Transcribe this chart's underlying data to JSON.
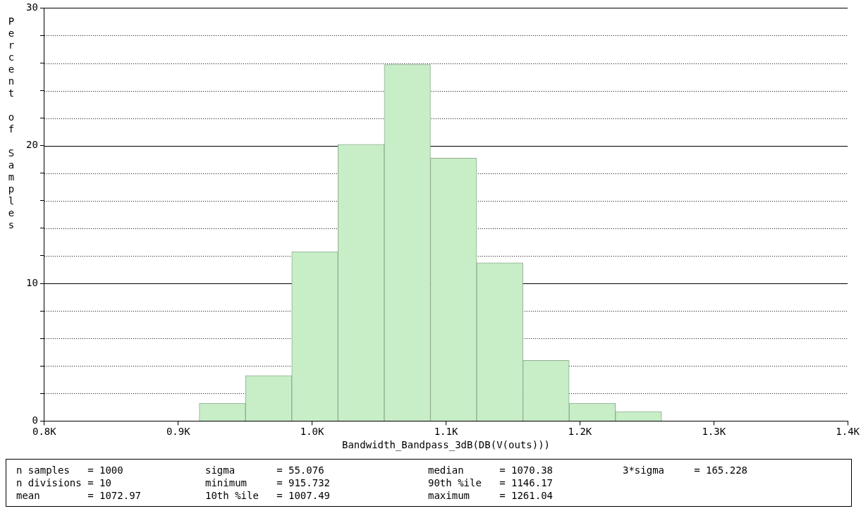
{
  "chart_data": {
    "type": "histogram",
    "xlabel": "Bandwidth_Bandpass_3dB(DB(V(outs)))",
    "ylabel": "Percent of Samples",
    "bins": [
      915.732,
      950.263,
      984.794,
      1019.325,
      1053.856,
      1088.387,
      1122.918,
      1157.449,
      1191.98,
      1226.51,
      1261.04
    ],
    "values": [
      1.3,
      3.3,
      12.3,
      20.1,
      25.9,
      19.1,
      11.5,
      4.4,
      1.3,
      0.7
    ],
    "color": "#c7eec7",
    "xlim": [
      800,
      1400
    ],
    "xticks": [
      {
        "value": 800,
        "label": "0.8K"
      },
      {
        "value": 900,
        "label": "0.9K"
      },
      {
        "value": 1000,
        "label": "1.0K"
      },
      {
        "value": 1100,
        "label": "1.1K"
      },
      {
        "value": 1200,
        "label": "1.2K"
      },
      {
        "value": 1300,
        "label": "1.3K"
      },
      {
        "value": 1400,
        "label": "1.4K"
      }
    ],
    "ylim": [
      0,
      30
    ],
    "yticks": [
      0,
      {
        "value": 2,
        "label": null
      },
      {
        "value": 4,
        "label": null
      },
      {
        "value": 6,
        "label": null
      },
      {
        "value": 8,
        "label": null
      },
      10,
      {
        "value": 12,
        "label": null
      },
      {
        "value": 14,
        "label": null
      },
      {
        "value": 16,
        "label": null
      },
      {
        "value": 18,
        "label": null
      },
      20,
      {
        "value": 22,
        "label": null
      },
      {
        "value": 24,
        "label": null
      },
      {
        "value": 26,
        "label": null
      },
      {
        "value": 28,
        "label": null
      },
      30
    ],
    "grid": "y",
    "legend": false,
    "annotations": [
      "n samples   = 1000",
      "n divisions = 10",
      "mean        = 1072.97",
      "sigma       = 55.076",
      "minimum     = 915.732",
      "10th %ile   = 1007.49",
      "median      = 1070.38",
      "90th %ile   = 1146.17",
      "maximum     = 1261.04",
      "3*sigma     = 165.228"
    ]
  }
}
